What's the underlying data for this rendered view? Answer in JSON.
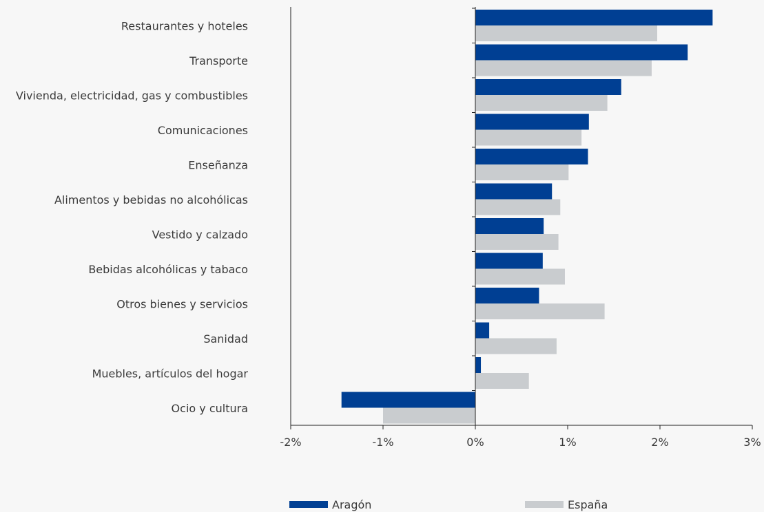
{
  "chart_data": {
    "type": "bar",
    "orientation": "horizontal",
    "categories": [
      "Restaurantes y hoteles",
      "Transporte",
      "Vivienda, electricidad, gas y combustibles",
      "Comunicaciones",
      "Enseñanza",
      "Alimentos y bebidas no alcohólicas",
      "Vestido y calzado",
      "Bebidas alcohólicas y tabaco",
      "Otros bienes y servicios",
      "Sanidad",
      "Muebles, artículos del hogar",
      "Ocio y cultura"
    ],
    "series": [
      {
        "name": "Aragón",
        "color": "#003f93",
        "values": [
          2.57,
          2.3,
          1.58,
          1.23,
          1.22,
          0.83,
          0.74,
          0.73,
          0.69,
          0.15,
          0.06,
          -1.45
        ]
      },
      {
        "name": "España",
        "color": "#c9cccf",
        "values": [
          1.97,
          1.91,
          1.43,
          1.15,
          1.01,
          0.92,
          0.9,
          0.97,
          1.4,
          0.88,
          0.58,
          -1.0
        ]
      }
    ],
    "xlim": [
      -2,
      3
    ],
    "xticks": [
      -2,
      -1,
      0,
      1,
      2,
      3
    ],
    "xtick_labels": [
      "-2%",
      "-1%",
      "0%",
      "1%",
      "2%",
      "3%"
    ],
    "grid": false,
    "legend_position": "bottom"
  }
}
